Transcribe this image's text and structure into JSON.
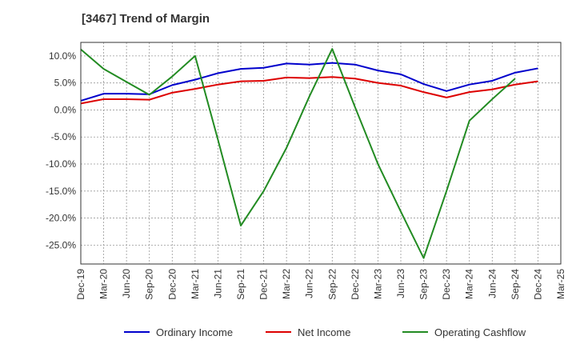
{
  "chart_data": {
    "type": "line",
    "title": "[3467]  Trend of Margin",
    "xlabel": "",
    "ylabel": "",
    "x_ticks": [
      "Dec-19",
      "Mar-20",
      "Jun-20",
      "Sep-20",
      "Dec-20",
      "Mar-21",
      "Jun-21",
      "Sep-21",
      "Dec-21",
      "Mar-22",
      "Jun-22",
      "Sep-22",
      "Dec-22",
      "Mar-23",
      "Jun-23",
      "Sep-23",
      "Dec-23",
      "Mar-24",
      "Jun-24",
      "Sep-24",
      "Dec-24",
      "Mar-25"
    ],
    "ylim": [
      -28.5,
      12.5
    ],
    "y_ticks": [
      10,
      5,
      0,
      -5,
      -10,
      -15,
      -20,
      -25
    ],
    "y_tick_labels": [
      "10.0%",
      "5.0%",
      "0.0%",
      "-5.0%",
      "-10.0%",
      "-15.0%",
      "-20.0%",
      "-25.0%"
    ],
    "grid": true,
    "legend_position": "bottom",
    "series": [
      {
        "name": "Ordinary Income",
        "color": "#0000cc",
        "values": [
          1.7,
          3.0,
          3.0,
          2.9,
          4.6,
          5.6,
          6.8,
          7.6,
          7.8,
          8.6,
          8.4,
          8.7,
          8.4,
          7.3,
          6.6,
          4.8,
          3.5,
          4.7,
          5.4,
          6.9,
          7.7
        ]
      },
      {
        "name": "Net Income",
        "color": "#dd0000",
        "values": [
          1.2,
          2.0,
          2.0,
          1.9,
          3.2,
          3.9,
          4.7,
          5.3,
          5.4,
          6.0,
          5.9,
          6.1,
          5.8,
          5.0,
          4.5,
          3.3,
          2.3,
          3.3,
          3.8,
          4.7,
          5.3
        ]
      },
      {
        "name": "Operating Cashflow",
        "color": "#228b22",
        "values": [
          11.2,
          7.6,
          5.2,
          2.8,
          6.2,
          10.0,
          -5.5,
          -21.4,
          -15.0,
          -7.0,
          2.5,
          11.3,
          0.5,
          -10.0,
          -18.8,
          -27.4,
          -15.0,
          -2.0,
          2.0,
          5.8,
          null
        ]
      }
    ]
  }
}
